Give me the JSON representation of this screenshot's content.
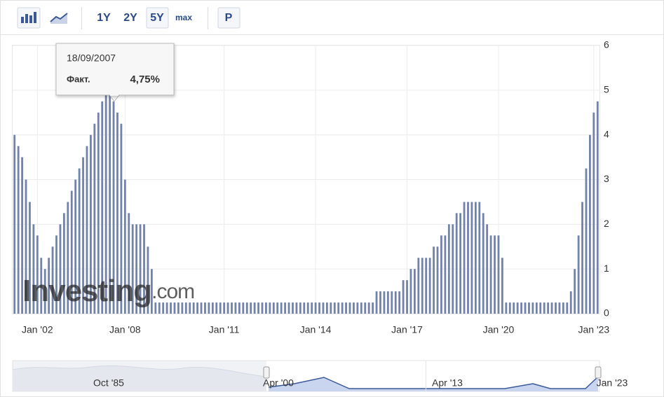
{
  "toolbar": {
    "buttons": [
      "1Y",
      "2Y",
      "5Y",
      "max",
      "Р"
    ]
  },
  "chart_data": {
    "type": "bar",
    "categories": [
      null,
      null,
      null,
      null,
      null,
      null,
      "Jan '02",
      null,
      null,
      null,
      null,
      null,
      null,
      null,
      null,
      null,
      null,
      null,
      null,
      null,
      null,
      null,
      null,
      null,
      null,
      null,
      null,
      null,
      null,
      "Jan '08",
      null,
      null,
      null,
      null,
      null,
      null,
      null,
      null,
      null,
      null,
      null,
      null,
      null,
      null,
      null,
      null,
      null,
      null,
      null,
      null,
      null,
      null,
      null,
      null,
      null,
      "Jan '11",
      null,
      null,
      null,
      null,
      null,
      null,
      null,
      null,
      null,
      null,
      null,
      null,
      null,
      null,
      null,
      null,
      null,
      null,
      null,
      null,
      null,
      null,
      null,
      "Jan '14",
      null,
      null,
      null,
      null,
      null,
      null,
      null,
      null,
      null,
      null,
      null,
      null,
      null,
      null,
      null,
      null,
      null,
      null,
      null,
      null,
      null,
      null,
      null,
      "Jan '17",
      null,
      null,
      null,
      null,
      null,
      null,
      null,
      null,
      null,
      null,
      null,
      null,
      null,
      null,
      null,
      null,
      null,
      null,
      null,
      null,
      null,
      null,
      null,
      "Jan '20",
      null,
      null,
      null,
      null,
      null,
      null,
      null,
      null,
      null,
      null,
      null,
      null,
      null,
      null,
      null,
      null,
      null,
      null,
      null,
      null,
      null,
      null,
      null,
      null,
      "Jan '23",
      null
    ],
    "values": [
      4,
      3.75,
      3.5,
      3,
      2.5,
      2,
      1.75,
      1.25,
      1,
      1.25,
      1.5,
      1.75,
      2,
      2.25,
      2.5,
      2.75,
      3,
      3.25,
      3.5,
      3.75,
      4,
      4.25,
      4.5,
      4.75,
      5,
      5.25,
      4.75,
      4.5,
      4.25,
      3,
      2.25,
      2,
      2,
      2,
      2,
      1.5,
      1,
      0.25,
      0.25,
      0.25,
      0.25,
      0.25,
      0.25,
      0.25,
      0.25,
      0.25,
      0.25,
      0.25,
      0.25,
      0.25,
      0.25,
      0.25,
      0.25,
      0.25,
      0.25,
      0.25,
      0.25,
      0.25,
      0.25,
      0.25,
      0.25,
      0.25,
      0.25,
      0.25,
      0.25,
      0.25,
      0.25,
      0.25,
      0.25,
      0.25,
      0.25,
      0.25,
      0.25,
      0.25,
      0.25,
      0.25,
      0.25,
      0.25,
      0.25,
      0.25,
      0.25,
      0.25,
      0.25,
      0.25,
      0.25,
      0.25,
      0.25,
      0.25,
      0.25,
      0.25,
      0.25,
      0.25,
      0.25,
      0.25,
      0.25,
      0.5,
      0.5,
      0.5,
      0.5,
      0.5,
      0.5,
      0.5,
      0.75,
      0.75,
      1,
      1,
      1.25,
      1.25,
      1.25,
      1.25,
      1.5,
      1.5,
      1.75,
      1.75,
      2,
      2,
      2.25,
      2.25,
      2.5,
      2.5,
      2.5,
      2.5,
      2.5,
      2.25,
      2,
      1.75,
      1.75,
      1.75,
      1.25,
      0.25,
      0.25,
      0.25,
      0.25,
      0.25,
      0.25,
      0.25,
      0.25,
      0.25,
      0.25,
      0.25,
      0.25,
      0.25,
      0.25,
      0.25,
      0.25,
      0.25,
      0.5,
      1,
      1.75,
      2.5,
      3.25,
      4,
      4.5,
      4.75
    ],
    "color": "#7282aa",
    "ylim": [
      0,
      6
    ],
    "yticks": [
      0,
      1,
      2,
      3,
      4,
      5,
      6
    ],
    "grid": true,
    "watermark": [
      "Investing",
      ".com"
    ],
    "tooltip": {
      "date": "18/09/2007",
      "label": "Факт.",
      "value": 4.75,
      "value_label": "4,75%"
    }
  },
  "navigator": {
    "labels": [
      "Oct '85",
      "Apr '00",
      "Apr '13",
      "Jan '23"
    ]
  }
}
